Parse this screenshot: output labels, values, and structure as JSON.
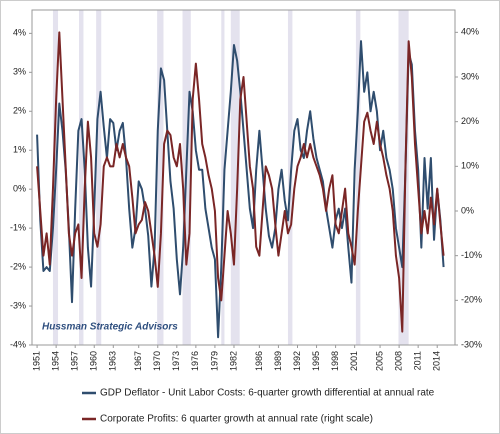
{
  "chart_data": {
    "type": "line",
    "annotation": "Hussman Strategic Advisors",
    "x": [
      1951,
      1951.5,
      1952,
      1952.5,
      1953,
      1953.5,
      1954,
      1954.5,
      1955,
      1955.5,
      1956,
      1956.5,
      1957,
      1957.5,
      1958,
      1958.5,
      1959,
      1959.5,
      1960,
      1960.5,
      1961,
      1961.5,
      1962,
      1962.5,
      1963,
      1963.5,
      1964,
      1964.5,
      1965,
      1965.5,
      1966,
      1966.5,
      1967,
      1967.5,
      1968,
      1968.5,
      1969,
      1969.5,
      1970,
      1970.5,
      1971,
      1971.5,
      1972,
      1972.5,
      1973,
      1973.5,
      1974,
      1974.5,
      1975,
      1975.5,
      1976,
      1976.5,
      1977,
      1977.5,
      1978,
      1978.5,
      1979,
      1979.5,
      1980,
      1980.5,
      1981,
      1981.5,
      1982,
      1982.5,
      1983,
      1983.5,
      1984,
      1984.5,
      1985,
      1985.5,
      1986,
      1986.5,
      1987,
      1987.5,
      1988,
      1988.5,
      1989,
      1989.5,
      1990,
      1990.5,
      1991,
      1991.5,
      1992,
      1992.5,
      1993,
      1993.5,
      1994,
      1994.5,
      1995,
      1995.5,
      1996,
      1996.5,
      1997,
      1997.5,
      1998,
      1998.5,
      1999,
      1999.5,
      2000,
      2000.5,
      2001,
      2001.5,
      2002,
      2002.5,
      2003,
      2003.5,
      2004,
      2004.5,
      2005,
      2005.5,
      2006,
      2006.5,
      2007,
      2007.5,
      2008,
      2008.5,
      2009,
      2009.5,
      2010,
      2010.5,
      2011,
      2011.5,
      2012,
      2012.5,
      2013,
      2013.5,
      2014,
      2014.5,
      2015
    ],
    "series": [
      {
        "name": "GDP Deflator - Unit Labor Costs: 6-quarter growth differential at annual rate",
        "color": "#2f4d6e",
        "axis": "y",
        "values": [
          1.4,
          -0.8,
          -2.1,
          -2.0,
          -2.1,
          -1.0,
          0.5,
          2.2,
          1.5,
          0.5,
          -1.0,
          -2.9,
          -0.5,
          1.5,
          1.8,
          0.5,
          -1.5,
          -2.5,
          -0.5,
          1.8,
          2.5,
          1.6,
          0.8,
          1.8,
          1.7,
          1.0,
          1.5,
          1.7,
          0.8,
          -0.5,
          -1.5,
          -1.0,
          0.2,
          0.0,
          -0.5,
          -1.2,
          -2.5,
          -1.5,
          1.5,
          3.1,
          2.8,
          1.5,
          0.2,
          -0.5,
          -1.8,
          -2.7,
          -1.5,
          0.5,
          2.5,
          2.0,
          1.0,
          0.5,
          0.5,
          -0.5,
          -1.0,
          -1.5,
          -1.8,
          -3.8,
          -2.0,
          0.5,
          1.5,
          2.5,
          3.7,
          3.3,
          2.5,
          1.5,
          0.5,
          -0.5,
          -1.0,
          0.5,
          1.5,
          0.5,
          -0.5,
          -1.2,
          -1.5,
          -1.0,
          0.0,
          0.5,
          -0.3,
          -0.8,
          0.5,
          1.5,
          1.8,
          1.0,
          0.8,
          1.5,
          2.0,
          1.3,
          0.8,
          0.5,
          0.2,
          -0.5,
          -1.0,
          -1.5,
          -0.8,
          -0.5,
          -1.0,
          -0.5,
          -1.5,
          -2.4,
          0.5,
          2.0,
          3.8,
          2.5,
          3.0,
          2.0,
          2.5,
          2.0,
          1.0,
          1.5,
          0.8,
          0.5,
          0.0,
          -1.0,
          -1.5,
          -2.0,
          0.5,
          3.5,
          3.2,
          1.5,
          0.5,
          -1.5,
          0.8,
          -0.5,
          0.8,
          -1.3,
          0.0,
          -0.8,
          -2.0
        ]
      },
      {
        "name": "Corporate Profits: 6 quarter growth at annual rate (right scale)",
        "color": "#7a2626",
        "axis": "y2",
        "values": [
          10,
          0,
          -10,
          -5,
          -12,
          5,
          25,
          40,
          25,
          10,
          -5,
          -10,
          -5,
          -3,
          -15,
          5,
          20,
          12,
          -5,
          -8,
          -3,
          10,
          12,
          10,
          10,
          15,
          12,
          15,
          12,
          10,
          3,
          -5,
          -3,
          -2,
          2,
          0,
          -5,
          -10,
          -17,
          -5,
          15,
          18,
          17,
          12,
          10,
          15,
          5,
          -12,
          -5,
          25,
          33,
          25,
          15,
          12,
          8,
          5,
          0,
          -15,
          -20,
          -10,
          0,
          -5,
          -12,
          5,
          25,
          30,
          20,
          10,
          5,
          -8,
          -10,
          0,
          10,
          8,
          5,
          -3,
          -10,
          -5,
          0,
          -5,
          -3,
          5,
          10,
          12,
          15,
          12,
          15,
          12,
          10,
          8,
          5,
          0,
          5,
          8,
          -3,
          -5,
          0,
          5,
          -5,
          -8,
          -12,
          0,
          10,
          20,
          22,
          18,
          15,
          20,
          15,
          12,
          8,
          5,
          0,
          -10,
          -15,
          -27,
          10,
          38,
          30,
          15,
          5,
          -5,
          0,
          -5,
          3,
          -3,
          5,
          -3,
          -10
        ]
      }
    ],
    "shaded_periods": [
      [
        1953.5,
        1954.3
      ],
      [
        1957.6,
        1958.3
      ],
      [
        1960.3,
        1961.1
      ],
      [
        1969.9,
        1970.9
      ],
      [
        1973.9,
        1975.2
      ],
      [
        1980.0,
        1980.5
      ],
      [
        1981.5,
        1982.9
      ],
      [
        1990.5,
        1991.2
      ],
      [
        2001.2,
        2001.9
      ],
      [
        2007.9,
        2009.5
      ]
    ],
    "shade_color": "#e4e2ee",
    "xlim": [
      1950.2,
      2016.8
    ],
    "xticks": [
      1951,
      1954,
      1957,
      1960,
      1963,
      1967,
      1970,
      1973,
      1976,
      1979,
      1982,
      1986,
      1989,
      1992,
      1995,
      1998,
      2001,
      2005,
      2008,
      2011,
      2014
    ],
    "ylim": [
      -4,
      4.6
    ],
    "yticks": [
      {
        "value": -4,
        "label": "-4%"
      },
      {
        "value": -3,
        "label": "-3%"
      },
      {
        "value": -2,
        "label": "-2%"
      },
      {
        "value": -1,
        "label": "-1%"
      },
      {
        "value": 0,
        "label": "0%"
      },
      {
        "value": 1,
        "label": "1%"
      },
      {
        "value": 2,
        "label": "2%"
      },
      {
        "value": 3,
        "label": "3%"
      },
      {
        "value": 4,
        "label": "4%"
      }
    ],
    "y2lim": [
      -30,
      45
    ],
    "y2ticks": [
      {
        "value": -30,
        "label": "-30%"
      },
      {
        "value": -20,
        "label": "-20%"
      },
      {
        "value": -10,
        "label": "-10%"
      },
      {
        "value": 0,
        "label": "0%"
      },
      {
        "value": 10,
        "label": "10%"
      },
      {
        "value": 20,
        "label": "20%"
      },
      {
        "value": 30,
        "label": "30%"
      },
      {
        "value": 40,
        "label": "40%"
      }
    ],
    "grid": false
  }
}
